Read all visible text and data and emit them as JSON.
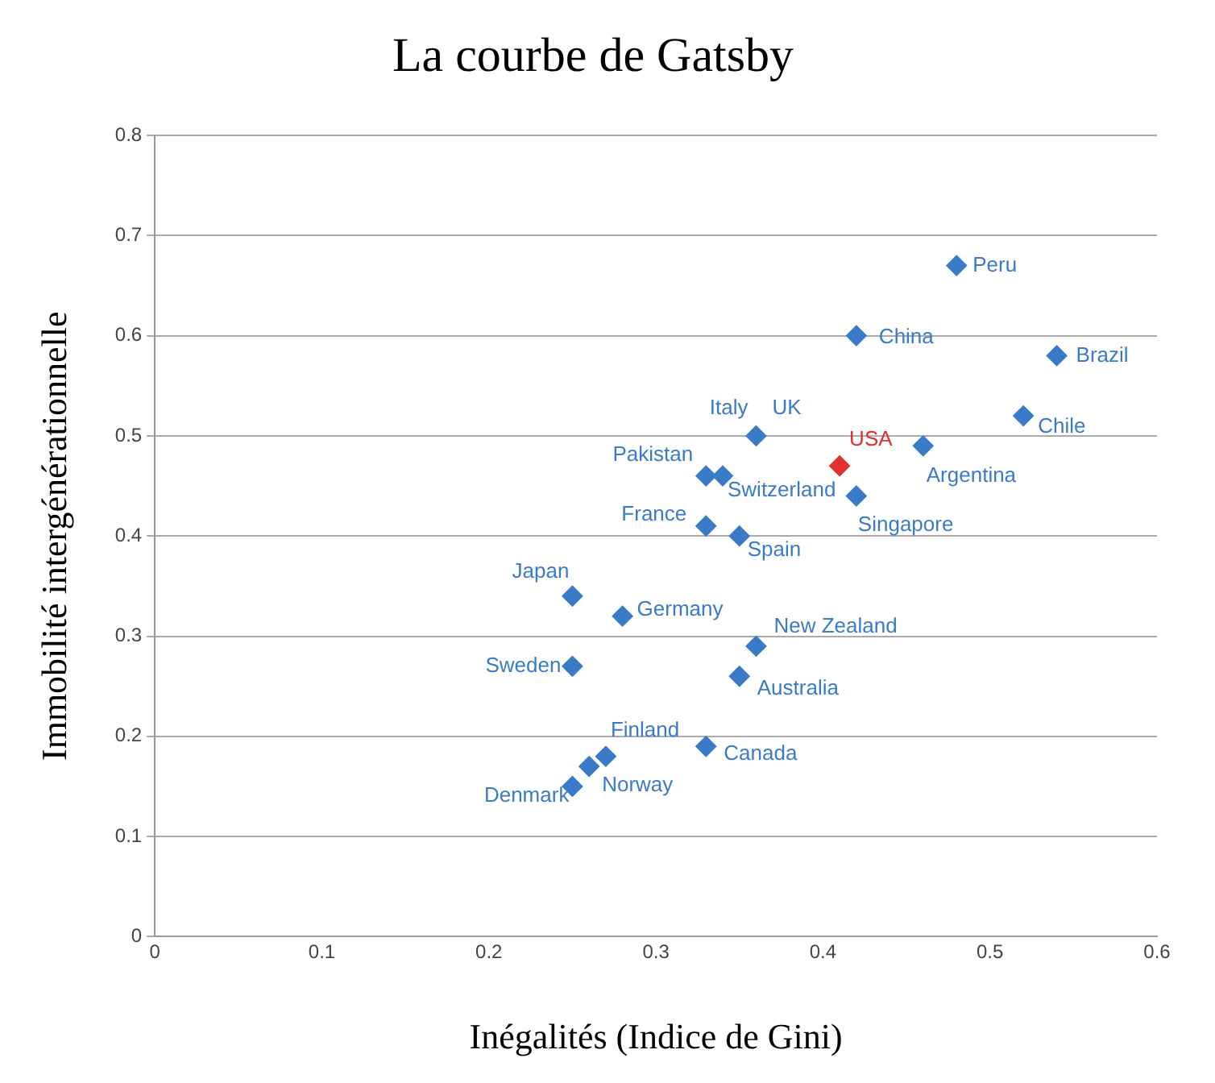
{
  "chart_data": {
    "type": "scatter",
    "title": "La courbe de Gatsby",
    "xlabel": "Inégalités (Indice de Gini)",
    "ylabel": "Immobilité intergénérationnelle",
    "x": [
      0.48,
      0.42,
      0.54,
      0.52,
      0.36,
      0.41,
      0.46,
      0.33,
      0.34,
      0.42,
      0.33,
      0.35,
      0.25,
      0.28,
      0.36,
      0.25,
      0.35,
      0.33,
      0.27,
      0.26,
      0.25
    ],
    "values": [
      0.67,
      0.6,
      0.58,
      0.52,
      0.5,
      0.47,
      0.49,
      0.46,
      0.46,
      0.44,
      0.41,
      0.4,
      0.34,
      0.32,
      0.29,
      0.27,
      0.26,
      0.19,
      0.18,
      0.17,
      0.15
    ],
    "colors": [
      "#3a7bc8",
      "#3a7bc8",
      "#3a7bc8",
      "#3a7bc8",
      "#3a7bc8",
      "#e03030",
      "#3a7bc8",
      "#3a7bc8",
      "#3a7bc8",
      "#3a7bc8",
      "#3a7bc8",
      "#3a7bc8",
      "#3a7bc8",
      "#3a7bc8",
      "#3a7bc8",
      "#3a7bc8",
      "#3a7bc8",
      "#3a7bc8",
      "#3a7bc8",
      "#3a7bc8",
      "#3a7bc8"
    ],
    "xlim": [
      0,
      0.6
    ],
    "xticks": [
      0,
      0.1,
      0.2,
      0.3,
      0.4,
      0.5,
      0.6
    ],
    "ylim": [
      0,
      0.8
    ],
    "yticks": [
      0,
      0.1,
      0.2,
      0.3,
      0.4,
      0.5,
      0.6,
      0.7,
      0.8
    ],
    "grid": "y",
    "marker": "diamond",
    "legend": false,
    "annotations": [
      {
        "text": "Peru",
        "x": 0.48,
        "y": 0.67
      },
      {
        "text": "China",
        "x": 0.42,
        "y": 0.6
      },
      {
        "text": "Brazil",
        "x": 0.54,
        "y": 0.58
      },
      {
        "text": "Chile",
        "x": 0.52,
        "y": 0.52
      },
      {
        "text": "Italy",
        "x": 0.36,
        "y": 0.5
      },
      {
        "text": "UK",
        "x": 0.36,
        "y": 0.5
      },
      {
        "text": "USA",
        "x": 0.41,
        "y": 0.47
      },
      {
        "text": "Argentina",
        "x": 0.46,
        "y": 0.49
      },
      {
        "text": "Pakistan",
        "x": 0.33,
        "y": 0.46
      },
      {
        "text": "Switzerland",
        "x": 0.34,
        "y": 0.46
      },
      {
        "text": "Singapore",
        "x": 0.42,
        "y": 0.44
      },
      {
        "text": "France",
        "x": 0.33,
        "y": 0.41
      },
      {
        "text": "Spain",
        "x": 0.35,
        "y": 0.4
      },
      {
        "text": "Japan",
        "x": 0.25,
        "y": 0.34
      },
      {
        "text": "Germany",
        "x": 0.28,
        "y": 0.32
      },
      {
        "text": "New Zealand",
        "x": 0.36,
        "y": 0.29
      },
      {
        "text": "Sweden",
        "x": 0.25,
        "y": 0.27
      },
      {
        "text": "Australia",
        "x": 0.35,
        "y": 0.26
      },
      {
        "text": "Canada",
        "x": 0.33,
        "y": 0.19
      },
      {
        "text": "Finland",
        "x": 0.27,
        "y": 0.18
      },
      {
        "text": "Norway",
        "x": 0.26,
        "y": 0.17
      },
      {
        "text": "Denmark",
        "x": 0.25,
        "y": 0.15
      }
    ]
  }
}
